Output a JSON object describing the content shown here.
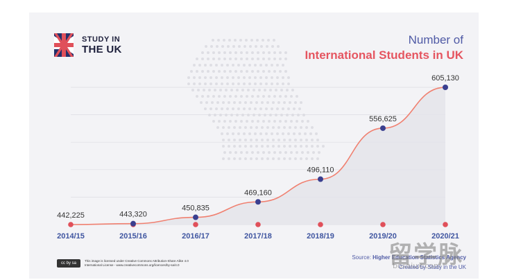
{
  "brand": {
    "line1": "STUDY IN",
    "line2": "THE UK",
    "flag_icon": "uk-flag-icon"
  },
  "title": {
    "line1": "Number of",
    "line2": "International Students in UK"
  },
  "chart_data": {
    "type": "area",
    "categories": [
      "2014/15",
      "2015/16",
      "2016/17",
      "2017/18",
      "2018/19",
      "2019/20",
      "2020/21"
    ],
    "values": [
      442225,
      443320,
      450835,
      469160,
      496110,
      556625,
      605130
    ],
    "labels": [
      "442,225",
      "443,320",
      "450,835",
      "469,160",
      "496,110",
      "556,625",
      "605,130"
    ],
    "grid": true,
    "line_color": "#f08070",
    "marker_color": "#3a3f8f",
    "axis_marker_color": "#e0505a",
    "tick_color": "#3f55a0"
  },
  "footer": {
    "license_line1": "This image is licensed under Creative Commons Attribution-Share Alike 4.0",
    "license_line2": "International License - www.creativecommons.org/licences/by-sa/4.0",
    "cc_badge": "cc by sa",
    "source_prefix": "Source:",
    "source_name": "Higher Education Statistics Agency",
    "created_by": "Created by Study in the UK"
  },
  "watermark": {
    "text": "留学脉",
    "sub": "bosaiux.com"
  }
}
